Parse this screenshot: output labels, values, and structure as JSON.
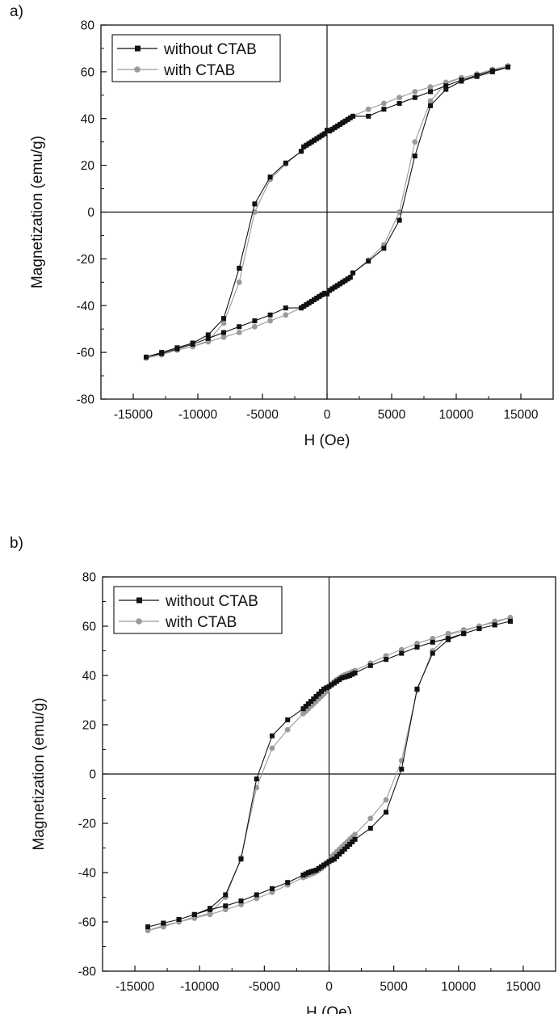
{
  "panels": [
    {
      "label": "a)"
    },
    {
      "label": "b)"
    }
  ],
  "chart_data": [
    {
      "type": "line",
      "title": "",
      "xlabel": "H (Oe)",
      "ylabel": "Magnetization (emu/g)",
      "xlim": [
        -17500,
        17500
      ],
      "ylim": [
        -80,
        80
      ],
      "xticks": [
        -15000,
        -10000,
        -5000,
        0,
        5000,
        10000,
        15000
      ],
      "xtick_labels": [
        "-15000",
        "-10000",
        "-5000",
        "0",
        "5000",
        "10000",
        "15000"
      ],
      "yticks": [
        -80,
        -60,
        -40,
        -20,
        0,
        20,
        40,
        60,
        80
      ],
      "ytick_labels": [
        "-80",
        "-60",
        "-40",
        "-20",
        "0",
        "20",
        "40",
        "60",
        "80"
      ],
      "grid": false,
      "legend_position": "top-left",
      "series": [
        {
          "name": "without CTAB",
          "color": "#111111",
          "marker": "square",
          "x": [
            14000,
            12800,
            11600,
            10400,
            9200,
            8000,
            6800,
            5600,
            4400,
            3200,
            2000,
            1800,
            1600,
            1400,
            1200,
            1000,
            800,
            600,
            400,
            200,
            0,
            -200,
            -400,
            -600,
            -800,
            -1000,
            -1200,
            -1400,
            -1600,
            -1800,
            -2000,
            -3200,
            -4400,
            -5600,
            -6800,
            -8000,
            -9200,
            -10400,
            -11600,
            -12800,
            -14000,
            -12800,
            -11600,
            -10400,
            -9200,
            -8000,
            -6800,
            -5600,
            -4400,
            -3200,
            -2000,
            -1800,
            -1600,
            -1400,
            -1200,
            -1000,
            -800,
            -600,
            -400,
            -200,
            0,
            200,
            400,
            600,
            800,
            1000,
            1200,
            1400,
            1600,
            1800,
            2000,
            3200,
            4400,
            5600,
            6800,
            8000,
            9200,
            10400,
            11600,
            12800,
            14000
          ],
          "y": [
            62,
            60.5,
            58.5,
            56.5,
            54,
            51.5,
            49,
            46.5,
            44,
            41,
            41,
            40.3,
            39.6,
            38.9,
            38.2,
            37.5,
            36.8,
            36.1,
            35.4,
            34.7,
            35,
            33.5,
            32.8,
            32.1,
            31.4,
            30.7,
            30.0,
            29.3,
            28.6,
            27.9,
            26,
            21,
            15,
            3.5,
            -24,
            -45.5,
            -52.5,
            -56,
            -58,
            -60,
            -62,
            -60.5,
            -58.5,
            -56.5,
            -54,
            -51.5,
            -49,
            -46.5,
            -44,
            -41,
            -41,
            -40.3,
            -39.6,
            -38.9,
            -38.2,
            -37.5,
            -36.8,
            -36.1,
            -35.4,
            -34.7,
            -35,
            -33.5,
            -32.8,
            -32.1,
            -31.4,
            -30.7,
            -30.0,
            -29.3,
            -28.6,
            -27.9,
            -26,
            -21,
            -15.5,
            -3.5,
            24,
            45.5,
            52.5,
            56,
            58,
            60,
            62
          ]
        },
        {
          "name": "with CTAB",
          "color": "#9a9a9a",
          "marker": "circle",
          "x": [
            14000,
            12800,
            11600,
            10400,
            9200,
            8000,
            6800,
            5600,
            4400,
            3200,
            2000,
            1800,
            1600,
            1400,
            1200,
            1000,
            800,
            600,
            400,
            200,
            0,
            -200,
            -400,
            -600,
            -800,
            -1000,
            -1200,
            -1400,
            -1600,
            -1800,
            -2000,
            -3200,
            -4400,
            -5600,
            -6800,
            -8000,
            -9200,
            -10400,
            -11600,
            -12800,
            -14000,
            -12800,
            -11600,
            -10400,
            -9200,
            -8000,
            -6800,
            -5600,
            -4400,
            -3200,
            -2000,
            -1800,
            -1600,
            -1400,
            -1200,
            -1000,
            -800,
            -600,
            -400,
            -200,
            0,
            200,
            400,
            600,
            800,
            1000,
            1200,
            1400,
            1600,
            1800,
            2000,
            3200,
            4400,
            5600,
            6800,
            8000,
            9200,
            10400,
            11600,
            12800,
            14000
          ],
          "y": [
            62.5,
            61,
            59,
            57.5,
            55.5,
            53.5,
            51.5,
            49,
            46.5,
            44,
            41,
            40.3,
            39.6,
            38.9,
            38.2,
            37.5,
            36.8,
            36.1,
            35.4,
            34.7,
            35,
            33.5,
            32.8,
            32.1,
            31.4,
            30.7,
            30.0,
            29.3,
            28.6,
            27.9,
            26,
            20.5,
            14,
            0,
            -30,
            -47.5,
            -55,
            -57.5,
            -59,
            -61,
            -62.5,
            -61,
            -59,
            -57.5,
            -55.5,
            -53.5,
            -51.5,
            -49,
            -46.5,
            -44,
            -41,
            -40.3,
            -39.6,
            -38.9,
            -38.2,
            -37.5,
            -36.8,
            -36.1,
            -35.4,
            -34.7,
            -35,
            -33.5,
            -32.8,
            -32.1,
            -31.4,
            -30.7,
            -30.0,
            -29.3,
            -28.6,
            -27.9,
            -26,
            -20.5,
            -14,
            0,
            30,
            47.5,
            55,
            57.5,
            59,
            61,
            62.5
          ]
        }
      ]
    },
    {
      "type": "line",
      "title": "",
      "xlabel": "H (Oe)",
      "ylabel": "Magnetization (emu/g)",
      "xlim": [
        -17500,
        17500
      ],
      "ylim": [
        -80,
        80
      ],
      "xticks": [
        -15000,
        -10000,
        -5000,
        0,
        5000,
        10000,
        15000
      ],
      "xtick_labels": [
        "-15000",
        "-10000",
        "-5000",
        "0",
        "5000",
        "10000",
        "15000"
      ],
      "yticks": [
        -80,
        -60,
        -40,
        -20,
        0,
        20,
        40,
        60,
        80
      ],
      "ytick_labels": [
        "-80",
        "-60",
        "-40",
        "-20",
        "0",
        "20",
        "40",
        "60",
        "80"
      ],
      "grid": false,
      "legend_position": "top-left",
      "series": [
        {
          "name": "without CTAB",
          "color": "#111111",
          "marker": "square",
          "x": [
            14000,
            12800,
            11600,
            10400,
            9200,
            8000,
            6800,
            5600,
            4400,
            3200,
            2000,
            1800,
            1600,
            1400,
            1200,
            1000,
            800,
            600,
            400,
            200,
            0,
            -200,
            -400,
            -600,
            -800,
            -1000,
            -1200,
            -1400,
            -1600,
            -1800,
            -2000,
            -3200,
            -4400,
            -5600,
            -6800,
            -8000,
            -9200,
            -10400,
            -11600,
            -12800,
            -14000,
            -12800,
            -11600,
            -10400,
            -9200,
            -8000,
            -6800,
            -5600,
            -4400,
            -3200,
            -2000,
            -1800,
            -1600,
            -1400,
            -1200,
            -1000,
            -800,
            -600,
            -400,
            -200,
            0,
            200,
            400,
            600,
            800,
            1000,
            1200,
            1400,
            1600,
            1800,
            2000,
            3200,
            4400,
            5600,
            6800,
            8000,
            9200,
            10400,
            11600,
            12800,
            14000
          ],
          "y": [
            62,
            60.5,
            59,
            57,
            54.5,
            49,
            34.5,
            2,
            -15.5,
            -22,
            -26.5,
            -27.5,
            -28.5,
            -29.5,
            -30.5,
            -31.5,
            -32.5,
            -33.5,
            -34.5,
            -35,
            -35.5,
            -36.2,
            -36.9,
            -37.6,
            -38.3,
            -39.0,
            -39.3,
            -39.6,
            -40,
            -40.5,
            -41,
            -44,
            -46.5,
            -49,
            -51.5,
            -53.5,
            -55,
            -57,
            -59,
            -60.5,
            -62,
            -60.5,
            -59,
            -57,
            -54.5,
            -49,
            -34.5,
            -2,
            15.5,
            22,
            26.5,
            27.5,
            28.5,
            29.5,
            30.5,
            31.5,
            32.5,
            33.5,
            34.5,
            35,
            35.5,
            36.2,
            36.9,
            37.6,
            38.3,
            39.0,
            39.3,
            39.6,
            40,
            40.5,
            41,
            44,
            46.5,
            49,
            51.5,
            53.5,
            55,
            57,
            59,
            60.5,
            62
          ]
        },
        {
          "name": "with CTAB",
          "color": "#9a9a9a",
          "marker": "circle",
          "x": [
            14000,
            12800,
            11600,
            10400,
            9200,
            8000,
            6800,
            5600,
            4400,
            3200,
            2000,
            1800,
            1600,
            1400,
            1200,
            1000,
            800,
            600,
            400,
            200,
            0,
            -200,
            -400,
            -600,
            -800,
            -1000,
            -1200,
            -1400,
            -1600,
            -1800,
            -2000,
            -3200,
            -4400,
            -5600,
            -6800,
            -8000,
            -9200,
            -10400,
            -11600,
            -12800,
            -14000,
            -12800,
            -11600,
            -10400,
            -9200,
            -8000,
            -6800,
            -5600,
            -4400,
            -3200,
            -2000,
            -1800,
            -1600,
            -1400,
            -1200,
            -1000,
            -800,
            -600,
            -400,
            -200,
            0,
            200,
            400,
            600,
            800,
            1000,
            1200,
            1400,
            1600,
            1800,
            2000,
            3200,
            4400,
            5600,
            6800,
            8000,
            9200,
            10400,
            11600,
            12800,
            14000
          ],
          "y": [
            63.5,
            61.5,
            60,
            58,
            56.5,
            50,
            34,
            5.5,
            -10.5,
            -18,
            -24.5,
            -25.5,
            -26.5,
            -27.5,
            -28.5,
            -29.5,
            -30.5,
            -31.5,
            -32.5,
            -33.5,
            -35.5,
            -36.5,
            -37.5,
            -38.3,
            -39.0,
            -39.7,
            -40.2,
            -40.6,
            -41,
            -41.5,
            -42,
            -45,
            -48,
            -50.5,
            -53,
            -55,
            -57,
            -58.5,
            -60,
            -62,
            -63.5,
            -61.5,
            -60,
            -58,
            -56.5,
            -50,
            -34,
            -5.5,
            10.5,
            18,
            24.5,
            25.5,
            26.5,
            27.5,
            28.5,
            29.5,
            30.5,
            31.5,
            32.5,
            33.5,
            35.5,
            36.5,
            37.5,
            38.3,
            39.0,
            39.7,
            40.2,
            40.6,
            41,
            41.5,
            42,
            45,
            48,
            50.5,
            53,
            55,
            57,
            58.5,
            60,
            62,
            63.5
          ]
        }
      ]
    }
  ]
}
